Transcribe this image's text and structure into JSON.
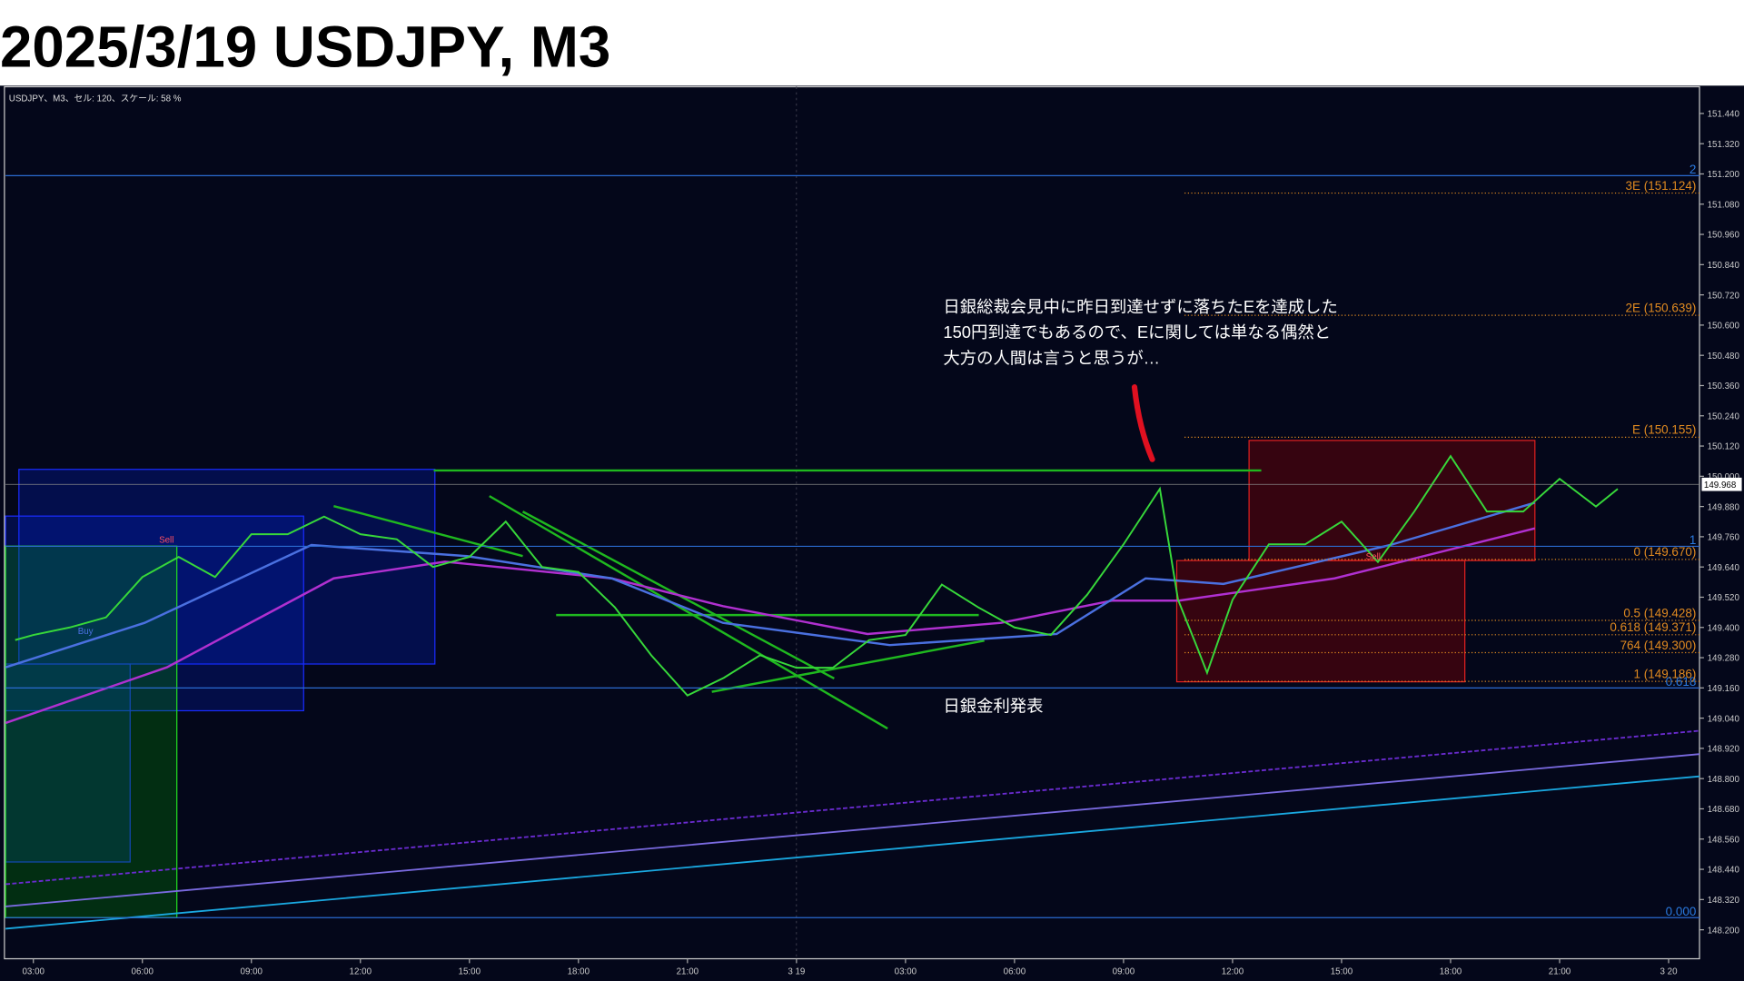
{
  "chart_data": {
    "type": "line",
    "title": "2025/3/19 USDJPY, M3",
    "header": "USDJPY、M3、セル: 120、スケール: 58 %",
    "annotations": [
      "日銀総裁会見中に昨日到達せずに落ちたEを達成した",
      "150円到達でもあるので、Eに関しては単なる偶然と",
      "大方の人間は言うと思うが…",
      "日銀金利発表"
    ],
    "signals": [
      "Sell",
      "Buy",
      "Sell"
    ],
    "series": [
      {
        "name": "USDJPY",
        "color": "#37d83a",
        "x": [
          2.5,
          3,
          4,
          5,
          6,
          7,
          8,
          9,
          10,
          11,
          12,
          13,
          14,
          15,
          16,
          17,
          18,
          19,
          20,
          21,
          22,
          23,
          24,
          25,
          26,
          27,
          28,
          29,
          30,
          31,
          32,
          33,
          34,
          34.5,
          35,
          35.3,
          36,
          37,
          38,
          39,
          40,
          41,
          42,
          43,
          44,
          45,
          46,
          46.6
        ],
        "values": [
          149.35,
          149.37,
          149.4,
          149.44,
          149.6,
          149.68,
          149.6,
          149.77,
          149.77,
          149.84,
          149.77,
          149.75,
          149.64,
          149.68,
          149.82,
          149.64,
          149.62,
          149.48,
          149.29,
          149.13,
          149.2,
          149.29,
          149.24,
          149.24,
          149.35,
          149.37,
          149.57,
          149.48,
          149.4,
          149.37,
          149.53,
          149.73,
          149.95,
          149.51,
          149.33,
          149.22,
          149.51,
          149.73,
          149.73,
          149.82,
          149.66,
          149.86,
          150.08,
          149.86,
          149.86,
          149.99,
          149.88,
          149.95
        ]
      }
    ],
    "current_price": 149.968,
    "fib_levels": [
      {
        "value": 151.124,
        "label": "3E (151.124)"
      },
      {
        "value": 150.639,
        "label": "2E (150.639)"
      },
      {
        "value": 150.155,
        "label": "E (150.155)"
      },
      {
        "value": 149.67,
        "label": "0 (149.670)"
      },
      {
        "value": 149.428,
        "label": "0.5 (149.428)"
      },
      {
        "value": 149.371,
        "label": "0.618 (149.371)"
      },
      {
        "value": 149.3,
        "label": "764 (149.300)"
      },
      {
        "value": 149.186,
        "label": "1 (149.186)"
      }
    ],
    "level_lines": [
      {
        "value": 151.193,
        "label": "2"
      },
      {
        "value": 149.722,
        "label": "1"
      },
      {
        "value": 149.16,
        "label": "0.618"
      },
      {
        "value": 148.248,
        "label": "0.000"
      }
    ],
    "xlim": [
      2.235,
      48.85
    ],
    "xticks": [
      {
        "value": 3,
        "label": "03:00"
      },
      {
        "value": 6,
        "label": "06:00"
      },
      {
        "value": 9,
        "label": "09:00"
      },
      {
        "value": 12,
        "label": "12:00"
      },
      {
        "value": 15,
        "label": "15:00"
      },
      {
        "value": 18,
        "label": "18:00"
      },
      {
        "value": 21,
        "label": "21:00"
      },
      {
        "value": 24,
        "label": "3 19"
      },
      {
        "value": 27,
        "label": "03:00"
      },
      {
        "value": 30,
        "label": "06:00"
      },
      {
        "value": 33,
        "label": "09:00"
      },
      {
        "value": 36,
        "label": "12:00"
      },
      {
        "value": 39,
        "label": "15:00"
      },
      {
        "value": 42,
        "label": "18:00"
      },
      {
        "value": 45,
        "label": "21:00"
      },
      {
        "value": 48,
        "label": "3 20"
      }
    ],
    "ylim": [
      148.085,
      151.546
    ],
    "yticks": [
      {
        "value": 151.44,
        "label": "151.440"
      },
      {
        "value": 151.32,
        "label": "151.320"
      },
      {
        "value": 151.2,
        "label": "151.200"
      },
      {
        "value": 151.08,
        "label": "151.080"
      },
      {
        "value": 150.96,
        "label": "150.960"
      },
      {
        "value": 150.84,
        "label": "150.840"
      },
      {
        "value": 150.72,
        "label": "150.720"
      },
      {
        "value": 150.6,
        "label": "150.600"
      },
      {
        "value": 150.48,
        "label": "150.480"
      },
      {
        "value": 150.36,
        "label": "150.360"
      },
      {
        "value": 150.24,
        "label": "150.240"
      },
      {
        "value": 150.12,
        "label": "150.120"
      },
      {
        "value": 150,
        "label": "150.000"
      },
      {
        "value": 149.88,
        "label": "149.880"
      },
      {
        "value": 149.76,
        "label": "149.760"
      },
      {
        "value": 149.64,
        "label": "149.640"
      },
      {
        "value": 149.52,
        "label": "149.520"
      },
      {
        "value": 149.4,
        "label": "149.400"
      },
      {
        "value": 149.28,
        "label": "149.280"
      },
      {
        "value": 149.16,
        "label": "149.160"
      },
      {
        "value": 149.04,
        "label": "149.040"
      },
      {
        "value": 148.92,
        "label": "148.920"
      },
      {
        "value": 148.8,
        "label": "148.800"
      },
      {
        "value": 148.68,
        "label": "148.680"
      },
      {
        "value": 148.56,
        "label": "148.560"
      },
      {
        "value": 148.44,
        "label": "148.440"
      },
      {
        "value": 148.32,
        "label": "148.320"
      },
      {
        "value": 148.2,
        "label": "148.200"
      }
    ]
  }
}
